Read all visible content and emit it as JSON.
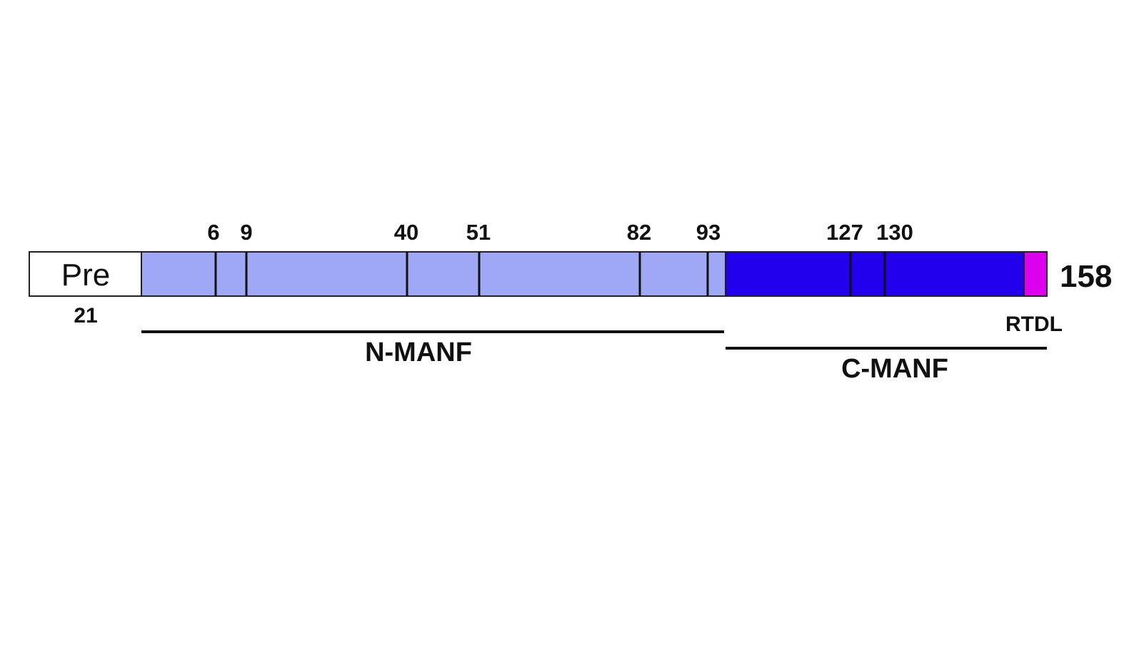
{
  "protein": {
    "signal_label": "Pre",
    "signal_end": "21",
    "length": "158",
    "motif_label": "RTDL",
    "colors": {
      "signal": "#ffffff",
      "n_domain": "#9fa8f5",
      "c_domain": "#2200ee",
      "motif": "#dd00ee",
      "outline": "#222222"
    },
    "positions": [
      {
        "label": "6"
      },
      {
        "label": "9"
      },
      {
        "label": "40"
      },
      {
        "label": "51"
      },
      {
        "label": "82"
      },
      {
        "label": "93"
      },
      {
        "label": "127"
      },
      {
        "label": "130"
      }
    ],
    "regions": [
      {
        "label": "N-MANF"
      },
      {
        "label": "C-MANF"
      }
    ]
  }
}
